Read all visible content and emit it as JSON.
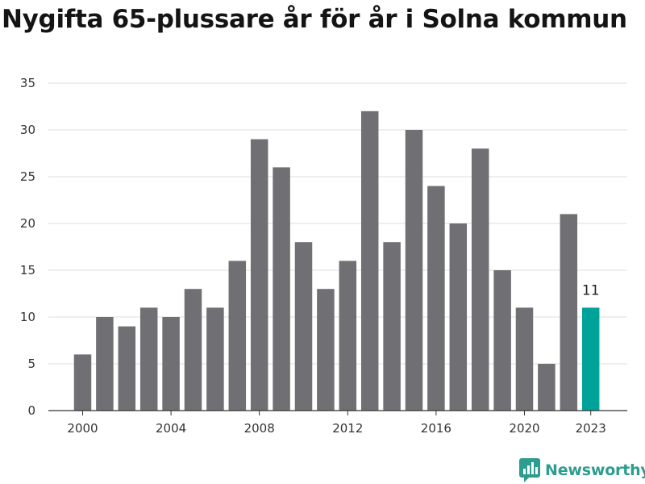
{
  "title": "Nygifta 65-plussare år för år i Solna kommun",
  "brand": {
    "name": "Newsworthy",
    "icon": "newsworthy-logo-icon",
    "color": "#2e9c8f"
  },
  "colors": {
    "bar": "#707074",
    "highlight": "#00a39a",
    "grid": "#dddddd"
  },
  "chart_data": {
    "type": "bar",
    "x": [
      2000,
      2001,
      2002,
      2003,
      2004,
      2005,
      2006,
      2007,
      2008,
      2009,
      2010,
      2011,
      2012,
      2013,
      2014,
      2015,
      2016,
      2017,
      2018,
      2019,
      2020,
      2021,
      2022,
      2023
    ],
    "values": [
      6,
      10,
      9,
      11,
      10,
      13,
      11,
      16,
      29,
      26,
      18,
      13,
      16,
      32,
      18,
      30,
      24,
      20,
      28,
      15,
      11,
      5,
      21,
      11
    ],
    "x_ticks": [
      "2000",
      "2004",
      "2008",
      "2012",
      "2016",
      "2020",
      "2023"
    ],
    "y_ticks": [
      "0",
      "5",
      "10",
      "15",
      "20",
      "25",
      "30",
      "35"
    ],
    "ylim": [
      0,
      35
    ],
    "grid": true,
    "highlight": {
      "x": 2023,
      "label": "11"
    }
  }
}
